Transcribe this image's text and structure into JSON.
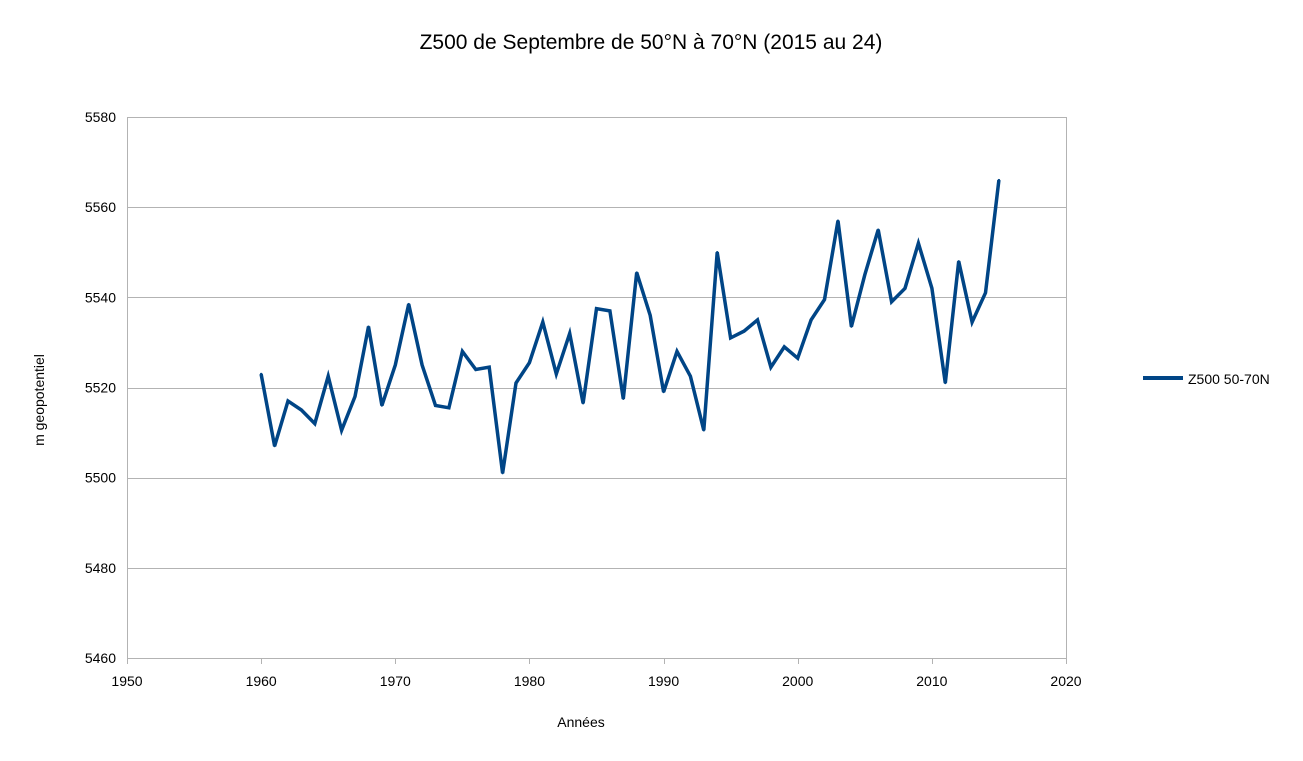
{
  "chart_data": {
    "type": "line",
    "title": "Z500 de Septembre de 50°N à 70°N (2015 au 24)",
    "xlabel": "Années",
    "ylabel": "m geopotentiel",
    "xlim": [
      1950,
      2020
    ],
    "ylim": [
      5460,
      5580
    ],
    "x_ticks": [
      1950,
      1960,
      1970,
      1980,
      1990,
      2000,
      2010,
      2020
    ],
    "y_ticks": [
      5460,
      5480,
      5500,
      5520,
      5540,
      5560,
      5580
    ],
    "grid": "horizontal",
    "legend_position": "right",
    "series": [
      {
        "name": "Z500 50-70N",
        "color": "#004586",
        "x": [
          1960,
          1961,
          1962,
          1963,
          1964,
          1965,
          1966,
          1967,
          1968,
          1969,
          1970,
          1971,
          1972,
          1973,
          1974,
          1975,
          1976,
          1977,
          1978,
          1979,
          1980,
          1981,
          1982,
          1983,
          1984,
          1985,
          1986,
          1987,
          1988,
          1989,
          1990,
          1991,
          1992,
          1993,
          1994,
          1995,
          1996,
          1997,
          1998,
          1999,
          2000,
          2001,
          2002,
          2003,
          2004,
          2005,
          2006,
          2007,
          2008,
          2009,
          2010,
          2011,
          2012,
          2013,
          2014,
          2015
        ],
        "values": [
          5523,
          5507,
          5517,
          5515,
          5512,
          5522.5,
          5510.5,
          5518,
          5533.5,
          5516,
          5525,
          5538.5,
          5525,
          5516,
          5515.5,
          5528,
          5524,
          5524.5,
          5501,
          5521,
          5525.5,
          5534.5,
          5523,
          5532,
          5516.5,
          5537.5,
          5537,
          5517.5,
          5545.5,
          5536,
          5519,
          5528,
          5522.5,
          5510.5,
          5550,
          5531,
          5532.5,
          5535,
          5524.5,
          5529,
          5526.5,
          5535,
          5539.5,
          5557,
          5533.5,
          5545,
          5555,
          5539,
          5542,
          5552,
          5542,
          5521,
          5548,
          5534.5,
          5541,
          5566
        ]
      }
    ]
  }
}
